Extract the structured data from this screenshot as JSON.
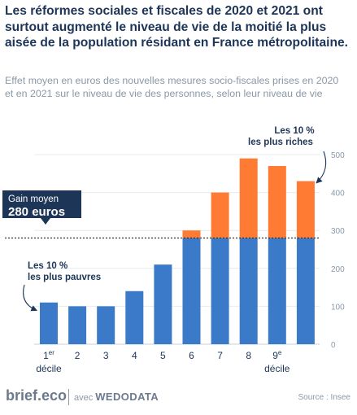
{
  "header": {
    "title": "Les réformes sociales et fiscales de 2020 et 2021 ont surtout augmenté le niveau de vie de la moitié la plus aisée de la population résidant en France métropolitaine.",
    "subtitle": "Effet moyen en euros des nouvelles mesures socio-fiscales prises en 2020 et en 2021 sur le niveau de vie des personnes, selon leur niveau de vie"
  },
  "chart_data": {
    "type": "bar",
    "stacked": true,
    "categories": [
      "1",
      "2",
      "3",
      "4",
      "5",
      "6",
      "7",
      "8",
      "9",
      "10"
    ],
    "x_tick_labels": [
      {
        "main": "1",
        "sup": "er",
        "sub": "décile"
      },
      {
        "main": "2",
        "sup": "",
        "sub": ""
      },
      {
        "main": "3",
        "sup": "",
        "sub": ""
      },
      {
        "main": "4",
        "sup": "",
        "sub": ""
      },
      {
        "main": "5",
        "sup": "",
        "sub": ""
      },
      {
        "main": "6",
        "sup": "",
        "sub": ""
      },
      {
        "main": "7",
        "sup": "",
        "sub": ""
      },
      {
        "main": "8",
        "sup": "",
        "sub": ""
      },
      {
        "main": "9",
        "sup": "e",
        "sub": "décile"
      },
      {
        "main": "",
        "sup": "",
        "sub": ""
      }
    ],
    "values": [
      110,
      100,
      100,
      140,
      210,
      300,
      400,
      490,
      470,
      430
    ],
    "reference_value": 280,
    "ylim": [
      0,
      500
    ],
    "yticks": [
      0,
      100,
      200,
      300,
      400,
      500
    ],
    "grid": true,
    "y_axis_position": "right",
    "colors": {
      "below_average": "#3a7ac8",
      "above_average": "#ff7a33",
      "reference_line": "#333333",
      "callout_box": "#1d3557",
      "annotation_text": "#1d3557"
    },
    "reference_label": {
      "line1": "Gain moyen",
      "line2": "280 euros"
    },
    "annotations": [
      {
        "line1": "Les 10 %",
        "line2": "les plus pauvres"
      },
      {
        "line1": "Les 10 %",
        "line2": "les plus riches"
      }
    ]
  },
  "footer": {
    "brand": "brief.eco",
    "partner_prefix": "avec",
    "partner_name": "WEDODATA",
    "source": "Source : Insee"
  }
}
